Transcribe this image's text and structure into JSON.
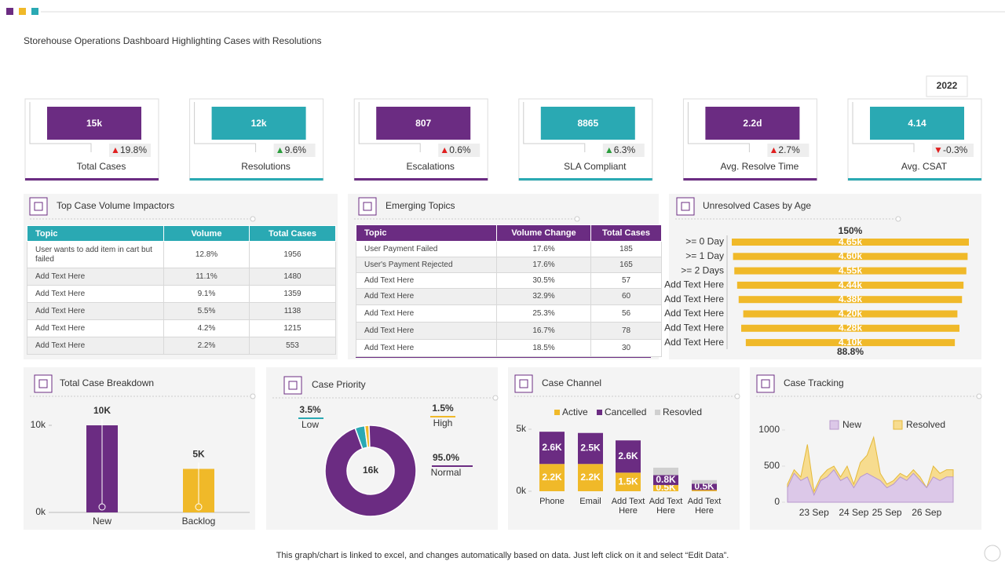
{
  "title": "Storehouse Operations Dashboard Highlighting Cases with Resolutions",
  "year": "2022",
  "kpis": [
    {
      "value": "15k",
      "arrow": "▲",
      "arrow_color": "#e02020",
      "change": "19.8%",
      "label": "Total Cases"
    },
    {
      "value": "12k",
      "arrow": "▲",
      "arrow_color": "#2a9d3c",
      "change": "9.6%",
      "label": "Resolutions"
    },
    {
      "value": "807",
      "arrow": "▲",
      "arrow_color": "#e02020",
      "change": "0.6%",
      "label": "Escalations"
    },
    {
      "value": "8865",
      "arrow": "▲",
      "arrow_color": "#2a9d3c",
      "change": "6.3%",
      "label": "SLA Compliant"
    },
    {
      "value": "2.2d",
      "arrow": "▲",
      "arrow_color": "#e02020",
      "change": "2.7%",
      "label": "Avg. Resolve Time"
    },
    {
      "value": "4.14",
      "arrow": "▼",
      "arrow_color": "#e02020",
      "change": "-0.3%",
      "label": "Avg. CSAT"
    }
  ],
  "impactors": {
    "title": "Top Case Volume Impactors",
    "columns": [
      "Topic",
      "Volume",
      "Total Cases"
    ],
    "rows": [
      [
        "User wants to add item in cart but failed",
        "12.8%",
        "1956"
      ],
      [
        "Add Text Here",
        "11.1%",
        "1480"
      ],
      [
        "Add Text Here",
        "9.1%",
        "1359"
      ],
      [
        "Add Text Here",
        "5.5%",
        "1138"
      ],
      [
        "Add Text Here",
        "4.2%",
        "1215"
      ],
      [
        "Add Text Here",
        "2.2%",
        "553"
      ]
    ]
  },
  "emerging": {
    "title": "Emerging Topics",
    "columns": [
      "Topic",
      "Volume Change",
      "Total Cases"
    ],
    "rows": [
      [
        "User Payment Failed",
        "17.6%",
        "185"
      ],
      [
        "User's Payment Rejected",
        "17.6%",
        "165"
      ],
      [
        "Add Text Here",
        "30.5%",
        "57"
      ],
      [
        "Add Text Here",
        "32.9%",
        "60"
      ],
      [
        "Add Text Here",
        "25.3%",
        "56"
      ],
      [
        "Add Text Here",
        "16.7%",
        "78"
      ],
      [
        "Add Text Here",
        "18.5%",
        "30"
      ]
    ]
  },
  "chart_data": [
    {
      "type": "hbar",
      "title": "Unresolved Cases by Age",
      "categories": [
        ">= 0 Day",
        ">= 1 Day",
        ">= 2 Days",
        "Add Text Here",
        "Add Text Here",
        "Add Text Here",
        "Add Text Here",
        "Add Text Here"
      ],
      "values": [
        4650,
        4600,
        4550,
        4440,
        4380,
        4200,
        4280,
        4100
      ],
      "value_labels": [
        "4.65k",
        "4.60k",
        "4.55k",
        "4.44k",
        "4.38k",
        "4.20k",
        "4.28k",
        "4.10k"
      ],
      "color": "#f0b929",
      "annotations": [
        "150%",
        "88.8%"
      ]
    },
    {
      "type": "bar",
      "title": "Total Case Breakdown",
      "categories": [
        "New",
        "Backlog"
      ],
      "values": [
        10000,
        5000
      ],
      "value_labels": [
        "10K",
        "5K"
      ],
      "colors": [
        "#6b2c82",
        "#f0b929"
      ],
      "ylim": [
        0,
        10000
      ],
      "yticks": [
        {
          "value": 0,
          "label": "0k"
        },
        {
          "value": 10000,
          "label": "10k"
        }
      ]
    },
    {
      "type": "donut",
      "title": "Case Priority",
      "categories": [
        "Low",
        "High",
        "Normal"
      ],
      "values": [
        3.5,
        1.5,
        95.0
      ],
      "value_labels": [
        "3.5%",
        "1.5%",
        "95.0%"
      ],
      "colors": [
        "#2aa9b3",
        "#f0b929",
        "#6b2c82"
      ],
      "center_label": "16k"
    },
    {
      "type": "stacked_bar",
      "title": "Case Channel",
      "categories": [
        "Phone",
        "Email",
        "Add Text Here",
        "Add Text Here",
        "Add Text Here"
      ],
      "series": [
        {
          "name": "Active",
          "color": "#f0b929",
          "values": [
            2200,
            2200,
            1500,
            500,
            100
          ],
          "value_labels": [
            "2.2K",
            "2.2K",
            "1.5K",
            "0.5K",
            null
          ]
        },
        {
          "name": "Cancelled",
          "color": "#6b2c82",
          "values": [
            2600,
            2500,
            2600,
            800,
            500
          ],
          "value_labels": [
            "2.6K",
            "2.5K",
            "2.6K",
            "0.8K",
            "0.5K"
          ]
        },
        {
          "name": "Resovled",
          "color": "#d0d0d0",
          "values": [
            0,
            0,
            0,
            600,
            300
          ]
        }
      ],
      "ylim": [
        0,
        5000
      ],
      "yticks": [
        {
          "value": 0,
          "label": "0k"
        },
        {
          "value": 5000,
          "label": "5k"
        }
      ]
    },
    {
      "type": "area",
      "title": "Case Tracking",
      "categories": [
        null,
        null,
        null,
        null,
        "23 Sep",
        null,
        null,
        null,
        null,
        null,
        "24 Sep",
        null,
        null,
        null,
        null,
        "25 Sep",
        null,
        null,
        null,
        null,
        null,
        "26 Sep",
        null,
        null,
        null,
        null
      ],
      "series": [
        {
          "name": "New",
          "color": "#dcc8e8",
          "values": [
            200,
            400,
            300,
            350,
            100,
            300,
            350,
            450,
            300,
            350,
            200,
            350,
            400,
            350,
            300,
            200,
            250,
            350,
            300,
            400,
            300,
            200,
            350,
            300,
            350,
            350
          ]
        },
        {
          "name": "Resolved",
          "color": "#f7dc8f",
          "values": [
            250,
            450,
            350,
            800,
            150,
            350,
            450,
            500,
            350,
            500,
            250,
            550,
            650,
            900,
            400,
            250,
            300,
            400,
            350,
            450,
            350,
            200,
            500,
            400,
            450,
            450
          ]
        }
      ],
      "ylim": [
        0,
        1000
      ],
      "yticks": [
        0,
        500,
        1000
      ]
    }
  ],
  "footer": "This graph/chart is linked to excel, and changes automatically based on data. Just left click on it and select “Edit Data”."
}
